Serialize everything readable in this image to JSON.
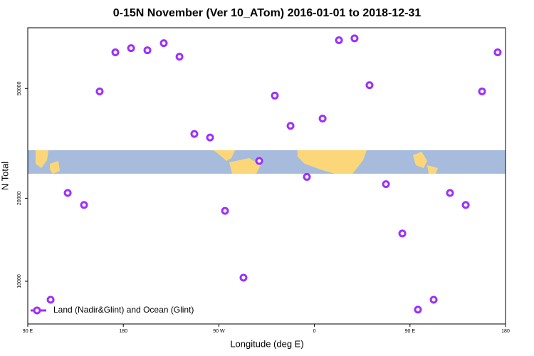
{
  "chart_data": {
    "type": "scatter",
    "title": "0-15N November (Ver 10_ATom)   2016-01-01 to 2018-12-31",
    "x_label": "Longitude (deg E)",
    "y_label": "N Total",
    "x": [
      111.5,
      127.6,
      143,
      157.7,
      172.5,
      187.3,
      202.7,
      218.1,
      232.9,
      246.9,
      261.7,
      275.8,
      293.2,
      308,
      322.7,
      337.5,
      352.9,
      367.7,
      383.1,
      397.8,
      411.9,
      427.4,
      442.8,
      457.5,
      472.3,
      487.7,
      502.5,
      517.9,
      532.6
    ],
    "series": [
      {
        "name": "Land (Nadir&Glint) and Ocean (Glint)",
        "color": "#9b30ff",
        "values": [
          8570,
          20900,
          18900,
          48800,
          67600,
          70000,
          68800,
          73000,
          65200,
          34200,
          33200,
          18000,
          10300,
          27300,
          47100,
          36600,
          23900,
          38900,
          74800,
          76000,
          51400,
          22500,
          14900,
          7890,
          8570,
          20900,
          18900,
          48800,
          67600
        ]
      }
    ],
    "xlim": [
      90,
      540
    ],
    "xticks": [
      {
        "value": 90,
        "label": "90 E"
      },
      180,
      {
        "value": 270,
        "label": "90 W"
      },
      {
        "value": 360,
        "label": "0"
      },
      {
        "value": 450,
        "label": "90 E"
      },
      {
        "value": 540,
        "label": "180"
      }
    ],
    "ylim": [
      7000,
      83000
    ],
    "yticks": [
      10000,
      20000,
      50000
    ],
    "log_y": true,
    "legend": "lower left"
  }
}
